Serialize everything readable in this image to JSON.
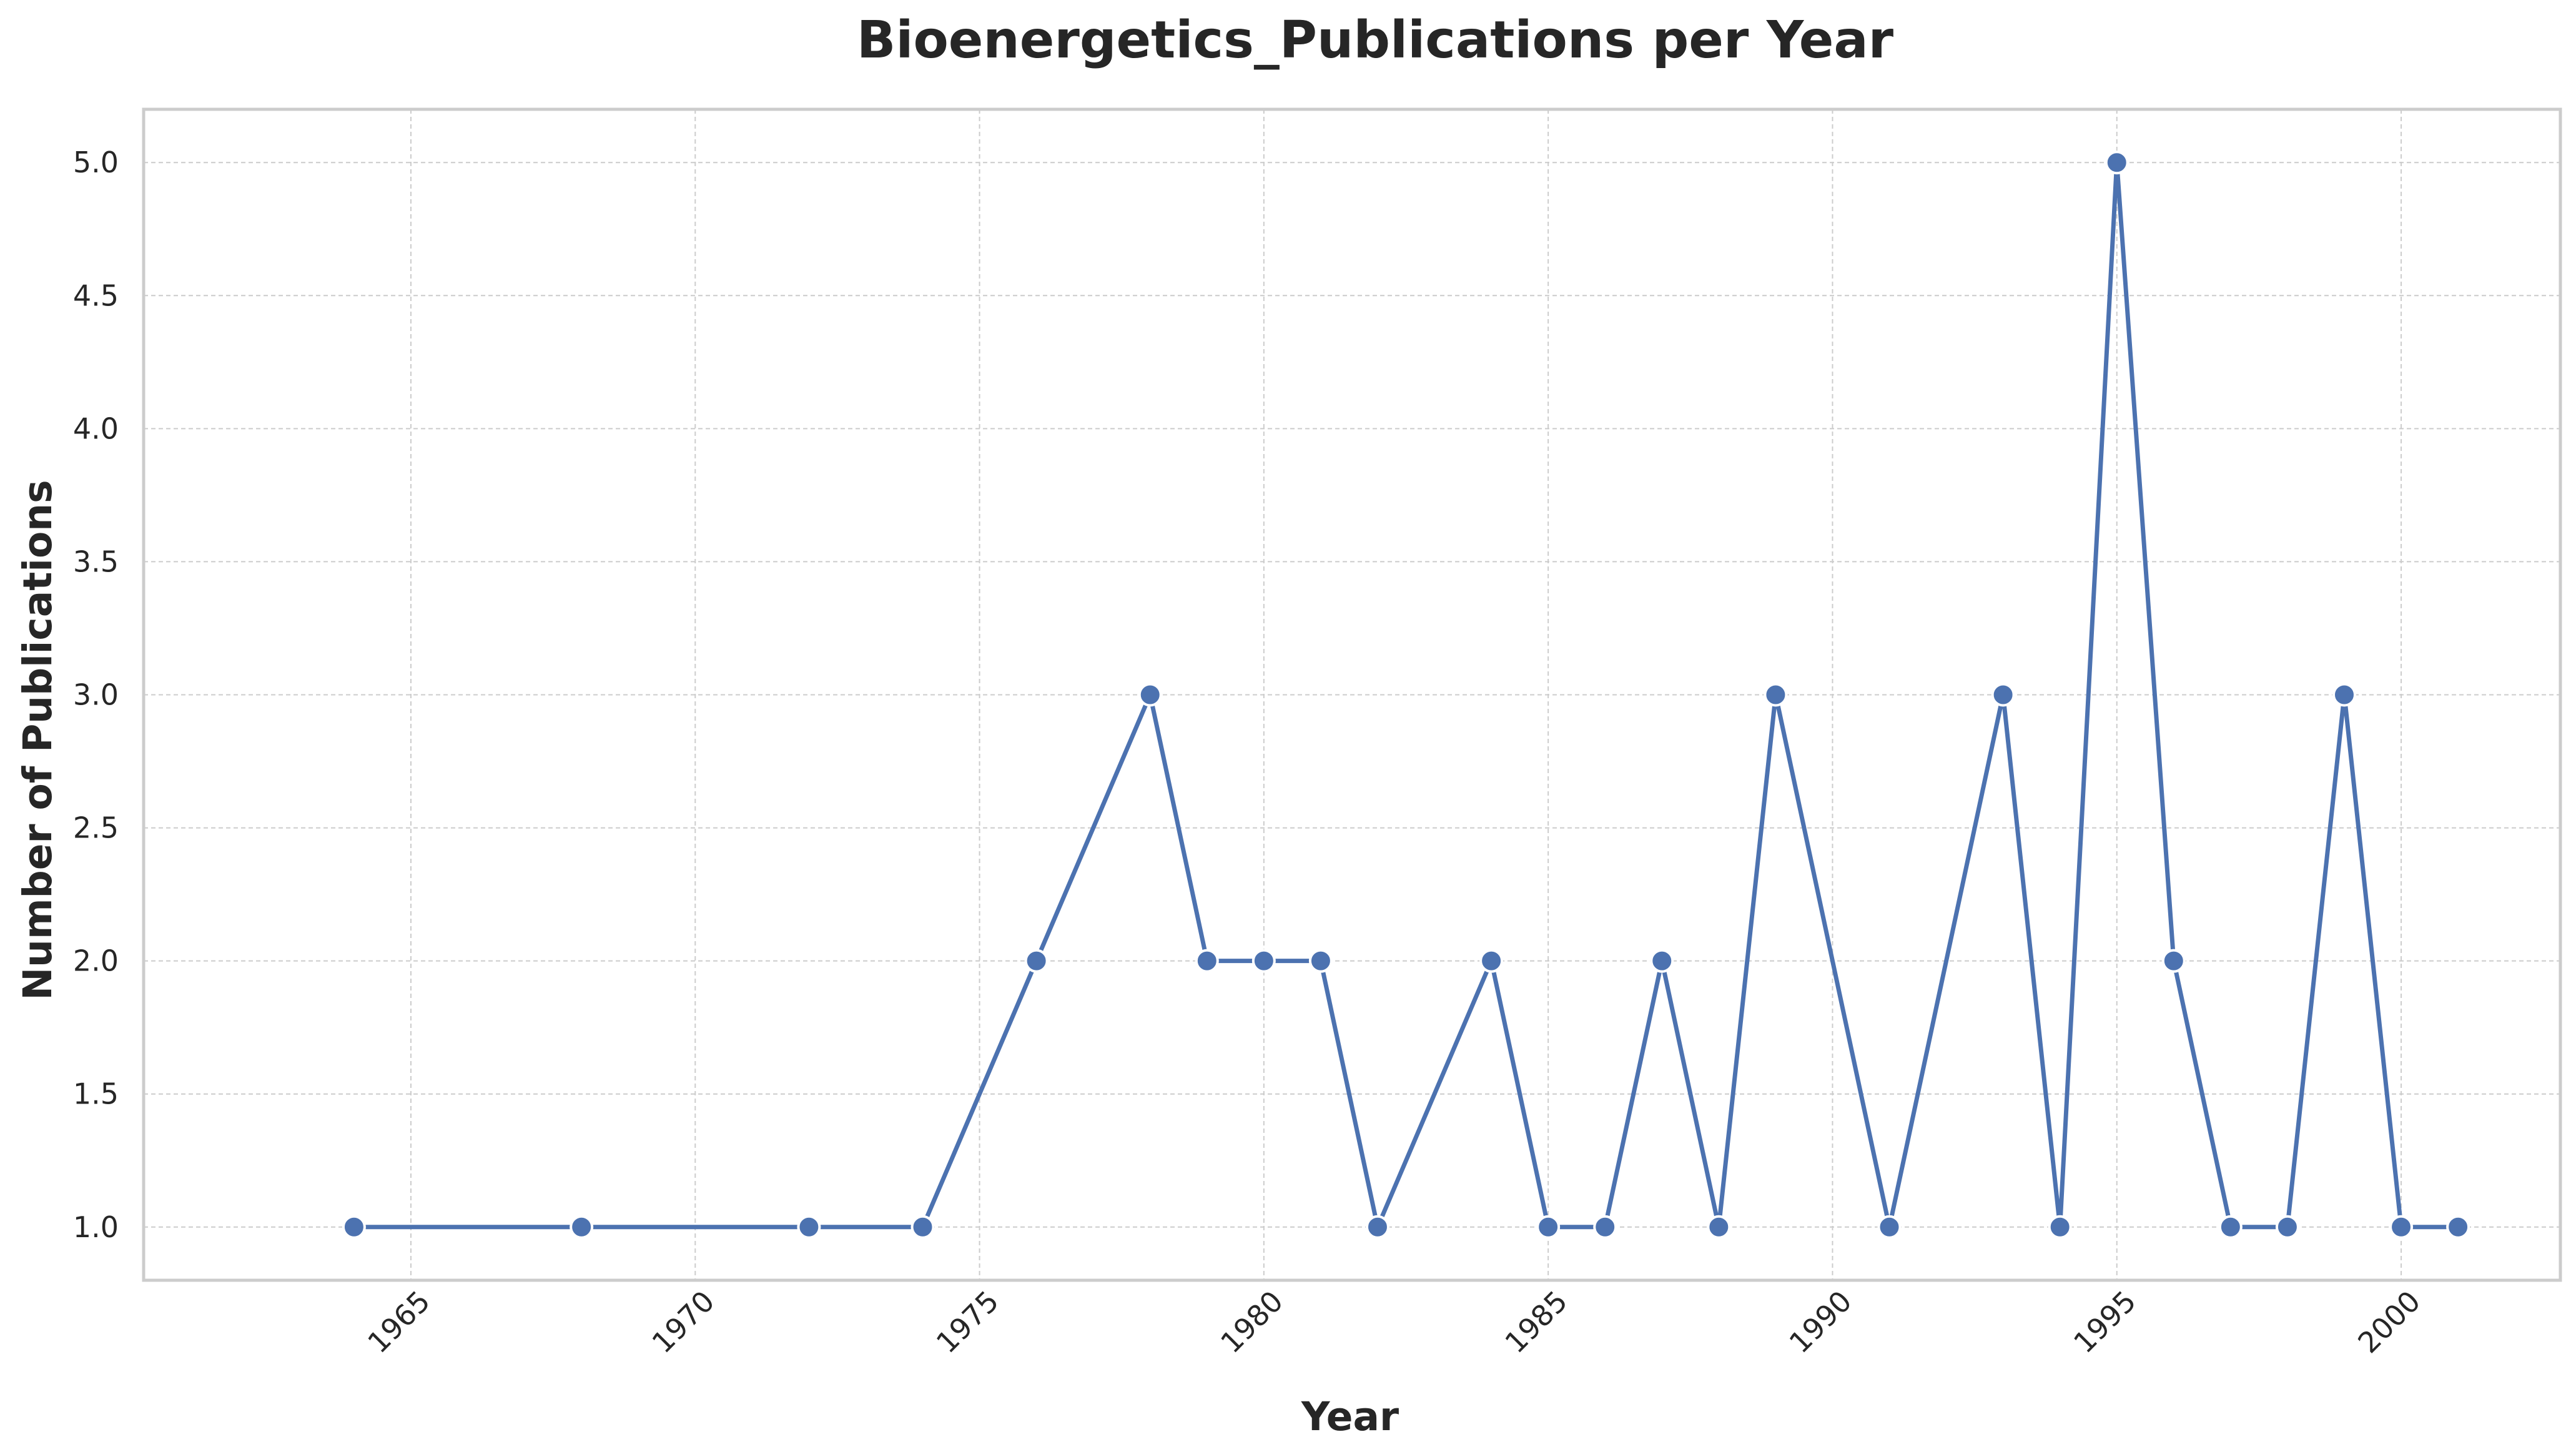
{
  "chart_data": {
    "type": "line",
    "title": "Bioenergetics_Publications per Year",
    "xlabel": "Year",
    "ylabel": "Number of Publications",
    "xlim": [
      1960.3,
      2002.8
    ],
    "ylim": [
      0.8,
      5.2
    ],
    "xticks": [
      1965,
      1970,
      1975,
      1980,
      1985,
      1990,
      1995,
      2000
    ],
    "yticks": [
      1.0,
      1.5,
      2.0,
      2.5,
      3.0,
      3.5,
      4.0,
      4.5,
      5.0
    ],
    "xtick_labels": [
      "1965",
      "1970",
      "1975",
      "1980",
      "1985",
      "1990",
      "1995",
      "2000"
    ],
    "ytick_labels": [
      "1.0",
      "1.5",
      "2.0",
      "2.5",
      "3.0",
      "3.5",
      "4.0",
      "4.5",
      "5.0"
    ],
    "grid": true,
    "series": [
      {
        "color": "#4c72b0",
        "marker": "circle",
        "x": [
          1964,
          1968,
          1972,
          1974,
          1976,
          1978,
          1979,
          1980,
          1981,
          1982,
          1984,
          1985,
          1986,
          1987,
          1988,
          1989,
          1991,
          1993,
          1994,
          1995,
          1996,
          1997,
          1998,
          1999,
          2000,
          2001
        ],
        "y": [
          1,
          1,
          1,
          1,
          2,
          3,
          2,
          2,
          2,
          1,
          2,
          1,
          1,
          2,
          1,
          3,
          1,
          3,
          1,
          5,
          2,
          1,
          1,
          3,
          1,
          1
        ]
      }
    ]
  }
}
